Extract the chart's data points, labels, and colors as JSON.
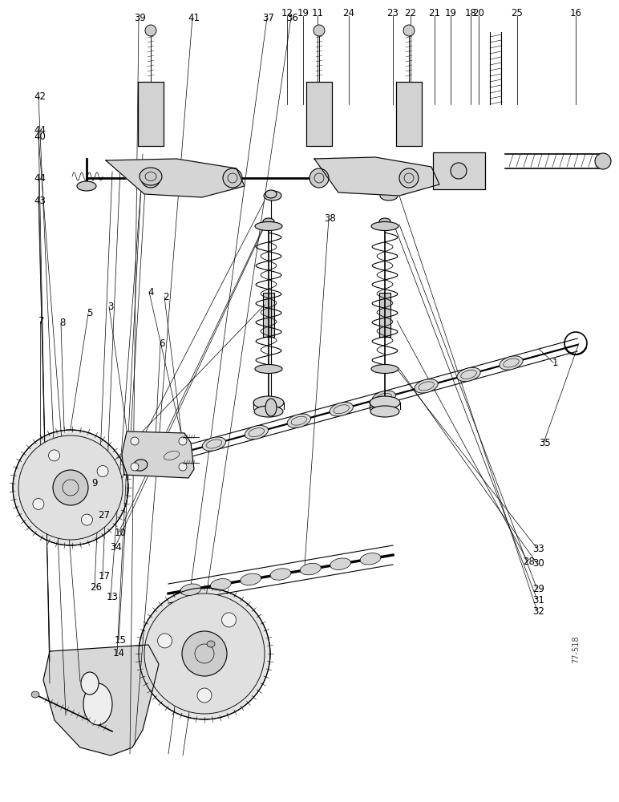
{
  "background_color": "#ffffff",
  "line_color": "#000000",
  "figure_width": 7.72,
  "figure_height": 10.0,
  "dpi": 100,
  "watermark": "77-518",
  "top_labels": [
    [
      "12",
      358
    ],
    [
      "19",
      378
    ],
    [
      "11",
      396
    ],
    [
      "24",
      435
    ],
    [
      "23",
      490
    ],
    [
      "22",
      512
    ],
    [
      "21",
      542
    ],
    [
      "19",
      562
    ],
    [
      "20",
      597
    ],
    [
      "18",
      587
    ],
    [
      "25",
      645
    ],
    [
      "16",
      718
    ]
  ],
  "side_labels": [
    [
      "1",
      692,
      548
    ],
    [
      "2",
      207,
      630
    ],
    [
      "3",
      138,
      618
    ],
    [
      "4",
      188,
      636
    ],
    [
      "5",
      112,
      609
    ],
    [
      "6",
      202,
      572
    ],
    [
      "7",
      52,
      600
    ],
    [
      "8",
      78,
      597
    ],
    [
      "9",
      118,
      398
    ],
    [
      "10",
      150,
      336
    ],
    [
      "13",
      140,
      255
    ],
    [
      "14",
      148,
      185
    ],
    [
      "15",
      150,
      202
    ],
    [
      "17",
      130,
      282
    ],
    [
      "26",
      120,
      267
    ],
    [
      "27",
      130,
      357
    ],
    [
      "28",
      660,
      300
    ],
    [
      "29",
      672,
      265
    ],
    [
      "30",
      672,
      297
    ],
    [
      "31",
      672,
      252
    ],
    [
      "32",
      672,
      238
    ],
    [
      "33",
      672,
      316
    ],
    [
      "34",
      145,
      317
    ],
    [
      "35",
      680,
      448
    ],
    [
      "38",
      412,
      728
    ],
    [
      "40",
      50,
      830
    ],
    [
      "42",
      50,
      880
    ],
    [
      "43",
      50,
      750
    ],
    [
      "44",
      50,
      778
    ],
    [
      "44",
      50,
      838
    ],
    [
      "39",
      175,
      978
    ],
    [
      "41",
      242,
      978
    ],
    [
      "37",
      335,
      978
    ],
    [
      "36",
      365,
      978
    ]
  ]
}
